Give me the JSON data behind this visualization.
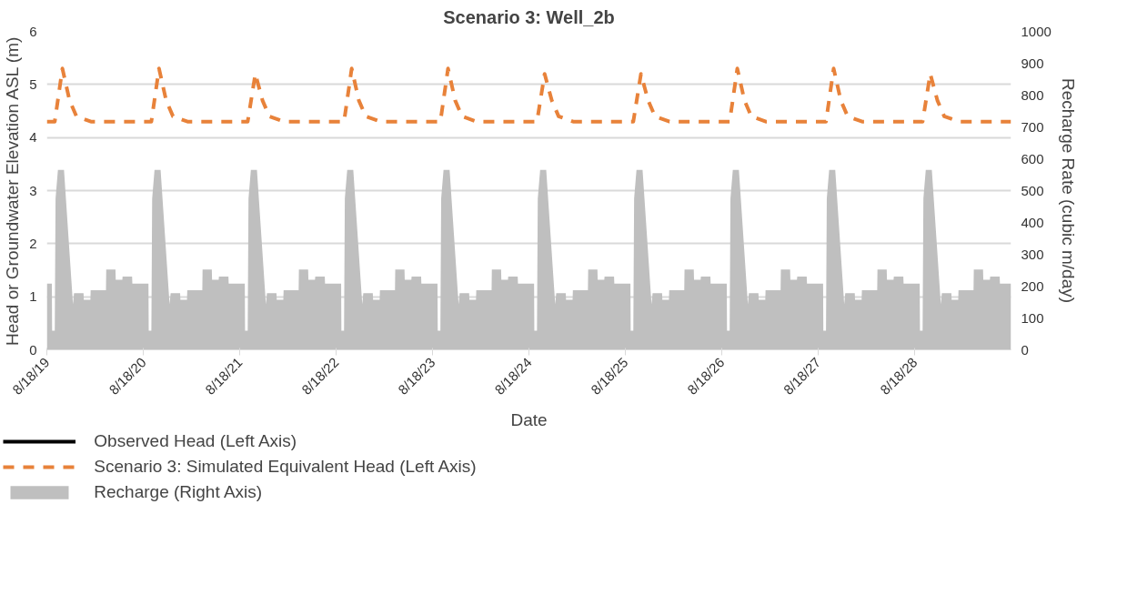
{
  "chart_data": {
    "type": "line",
    "title": "Scenario 3: Well_2b",
    "xlabel": "Date",
    "ylabel": "Head or Groundwater Elevation ASL (m)",
    "y2label": "Recharge Rate (cubic m/day)",
    "xlim": [
      "2019-08-18",
      "2029-08-18"
    ],
    "xticks": [
      {
        "value": "2019-08-18",
        "label": "8/18/19"
      },
      {
        "value": "2020-08-18",
        "label": "8/18/20"
      },
      {
        "value": "2021-08-18",
        "label": "8/18/21"
      },
      {
        "value": "2022-08-18",
        "label": "8/18/22"
      },
      {
        "value": "2023-08-18",
        "label": "8/18/23"
      },
      {
        "value": "2024-08-18",
        "label": "8/18/24"
      },
      {
        "value": "2025-08-18",
        "label": "8/18/25"
      },
      {
        "value": "2026-08-18",
        "label": "8/18/26"
      },
      {
        "value": "2027-08-18",
        "label": "8/18/27"
      },
      {
        "value": "2028-08-18",
        "label": "8/18/28"
      }
    ],
    "ylim": [
      0,
      6
    ],
    "yticks": [
      0,
      1,
      2,
      3,
      4,
      5,
      6
    ],
    "y2lim": [
      0,
      1000
    ],
    "y2ticks": [
      0,
      100,
      200,
      300,
      400,
      500,
      600,
      700,
      800,
      900,
      1000
    ],
    "grid": "y",
    "legend": "bottom",
    "series": [
      {
        "name": "Observed Head (Left Axis)",
        "color": "#000000",
        "line_style": "solid"
      },
      {
        "name": "Scenario 3: Simulated Equivalent Head (Left Axis)",
        "color": "#e8823a",
        "line_style": "dashed",
        "x": [
          "2019-08-18",
          "2019-09-17",
          "2019-10-16",
          "2019-11-12",
          "2019-12-08",
          "2020-02-01",
          "2020-08-18",
          "2020-09-17",
          "2020-10-16",
          "2020-11-12",
          "2020-12-08",
          "2021-02-01",
          "2021-08-18",
          "2021-09-17",
          "2021-10-16",
          "2021-11-12",
          "2021-12-08",
          "2022-02-01",
          "2022-08-18",
          "2022-09-17",
          "2022-10-16",
          "2022-11-12",
          "2022-12-08",
          "2023-02-01",
          "2023-08-18",
          "2023-09-17",
          "2023-10-16",
          "2023-11-12",
          "2023-12-08",
          "2024-02-01",
          "2024-08-18",
          "2024-09-17",
          "2024-10-16",
          "2024-11-12",
          "2024-12-08",
          "2025-02-01",
          "2025-08-18",
          "2025-09-17",
          "2025-10-16",
          "2025-11-12",
          "2025-12-08",
          "2026-02-01",
          "2026-08-18",
          "2026-09-17",
          "2026-10-16",
          "2026-11-12",
          "2026-12-08",
          "2027-02-01",
          "2027-08-18",
          "2027-09-17",
          "2027-10-16",
          "2027-11-12",
          "2027-12-08",
          "2028-02-01",
          "2028-08-18",
          "2028-09-17",
          "2028-10-16",
          "2028-11-12",
          "2028-12-08",
          "2029-02-01",
          "2029-08-18"
        ],
        "values": [
          4.3,
          4.3,
          5.3,
          4.7,
          4.4,
          4.3,
          4.3,
          4.3,
          5.3,
          4.7,
          4.4,
          4.3,
          4.3,
          4.3,
          5.2,
          4.7,
          4.4,
          4.3,
          4.3,
          4.3,
          5.3,
          4.7,
          4.4,
          4.3,
          4.3,
          4.3,
          5.3,
          4.7,
          4.4,
          4.3,
          4.3,
          4.3,
          5.2,
          4.7,
          4.4,
          4.3,
          4.3,
          4.3,
          5.2,
          4.7,
          4.4,
          4.3,
          4.3,
          4.3,
          5.3,
          4.7,
          4.4,
          4.3,
          4.3,
          4.3,
          5.3,
          4.7,
          4.4,
          4.3,
          4.3,
          4.3,
          5.2,
          4.7,
          4.4,
          4.3,
          4.3
        ]
      },
      {
        "name": "Recharge (Right Axis)",
        "type": "area",
        "axis": "y2",
        "color": "#bfbfbf",
        "x": [
          "2019-08-18",
          "2019-09-06",
          "2019-09-07",
          "2019-09-17",
          "2019-09-20",
          "2019-09-29",
          "2019-10-22",
          "2019-11-25",
          "2019-11-29",
          "2020-01-04",
          "2020-01-05",
          "2020-01-30",
          "2020-01-31",
          "2020-03-29",
          "2020-03-30",
          "2020-05-04",
          "2020-05-05",
          "2020-05-30",
          "2020-05-31",
          "2020-07-06",
          "2020-07-07",
          "2020-08-18",
          "2020-09-06",
          "2020-09-07",
          "2020-09-17",
          "2020-09-20",
          "2020-09-29",
          "2020-10-22",
          "2020-11-25",
          "2020-11-29",
          "2021-01-04",
          "2021-01-05",
          "2021-01-30",
          "2021-01-31",
          "2021-03-29",
          "2021-03-30",
          "2021-05-04",
          "2021-05-05",
          "2021-05-30",
          "2021-05-31",
          "2021-07-06",
          "2021-07-07",
          "2021-08-18",
          "2021-09-06",
          "2021-09-07",
          "2021-09-17",
          "2021-09-20",
          "2021-09-29",
          "2021-10-22",
          "2021-11-25",
          "2021-11-29",
          "2022-01-04",
          "2022-01-05",
          "2022-01-30",
          "2022-01-31",
          "2022-03-29",
          "2022-03-30",
          "2022-05-04",
          "2022-05-05",
          "2022-05-30",
          "2022-05-31",
          "2022-07-06",
          "2022-07-07",
          "2022-08-18",
          "2022-09-06",
          "2022-09-07",
          "2022-09-17",
          "2022-09-20",
          "2022-09-29",
          "2022-10-22",
          "2022-11-25",
          "2022-11-29",
          "2023-01-04",
          "2023-01-05",
          "2023-01-30",
          "2023-01-31",
          "2023-03-29",
          "2023-03-30",
          "2023-05-04",
          "2023-05-05",
          "2023-05-30",
          "2023-05-31",
          "2023-07-06",
          "2023-07-07",
          "2023-08-18",
          "2023-09-06",
          "2023-09-07",
          "2023-09-17",
          "2023-09-20",
          "2023-09-29",
          "2023-10-22",
          "2023-11-25",
          "2023-11-29",
          "2024-01-04",
          "2024-01-05",
          "2024-01-30",
          "2024-01-31",
          "2024-03-29",
          "2024-03-30",
          "2024-05-04",
          "2024-05-05",
          "2024-05-30",
          "2024-05-31",
          "2024-07-06",
          "2024-07-07",
          "2024-08-18",
          "2024-09-06",
          "2024-09-07",
          "2024-09-17",
          "2024-09-20",
          "2024-09-29",
          "2024-10-22",
          "2024-11-25",
          "2024-11-29",
          "2025-01-04",
          "2025-01-05",
          "2025-01-30",
          "2025-01-31",
          "2025-03-29",
          "2025-03-30",
          "2025-05-04",
          "2025-05-05",
          "2025-05-30",
          "2025-05-31",
          "2025-07-06",
          "2025-07-07",
          "2025-08-18",
          "2025-09-06",
          "2025-09-07",
          "2025-09-17",
          "2025-09-20",
          "2025-09-29",
          "2025-10-22",
          "2025-11-25",
          "2025-11-29",
          "2026-01-04",
          "2026-01-05",
          "2026-01-30",
          "2026-01-31",
          "2026-03-29",
          "2026-03-30",
          "2026-05-04",
          "2026-05-05",
          "2026-05-30",
          "2026-05-31",
          "2026-07-06",
          "2026-07-07",
          "2026-08-18",
          "2026-09-06",
          "2026-09-07",
          "2026-09-17",
          "2026-09-20",
          "2026-09-29",
          "2026-10-22",
          "2026-11-25",
          "2026-11-29",
          "2027-01-04",
          "2027-01-05",
          "2027-01-30",
          "2027-01-31",
          "2027-03-29",
          "2027-03-30",
          "2027-05-04",
          "2027-05-05",
          "2027-05-30",
          "2027-05-31",
          "2027-07-06",
          "2027-07-07",
          "2027-08-18",
          "2027-09-06",
          "2027-09-07",
          "2027-09-17",
          "2027-09-20",
          "2027-09-29",
          "2027-10-22",
          "2027-11-25",
          "2027-11-29",
          "2028-01-04",
          "2028-01-05",
          "2028-01-30",
          "2028-01-31",
          "2028-03-29",
          "2028-03-30",
          "2028-05-04",
          "2028-05-05",
          "2028-05-30",
          "2028-05-31",
          "2028-07-06",
          "2028-07-07",
          "2028-08-18",
          "2028-09-06",
          "2028-09-07",
          "2028-09-17",
          "2028-09-20",
          "2028-09-29",
          "2028-10-22",
          "2028-11-25",
          "2028-11-29",
          "2029-01-04",
          "2029-01-05",
          "2029-01-30",
          "2029-01-31",
          "2029-03-29",
          "2029-03-30",
          "2029-05-04",
          "2029-05-05",
          "2029-05-30",
          "2029-05-31",
          "2029-07-06",
          "2029-07-07",
          "2029-08-18"
        ],
        "values": [
          208,
          208,
          60,
          60,
          475,
          565,
          565,
          143,
          178,
          178,
          157,
          157,
          187,
          187,
          252,
          252,
          220,
          220,
          230,
          230,
          208,
          208,
          208,
          60,
          60,
          475,
          565,
          565,
          143,
          178,
          178,
          157,
          157,
          187,
          187,
          252,
          252,
          220,
          220,
          230,
          230,
          208,
          208,
          208,
          60,
          60,
          475,
          565,
          565,
          143,
          178,
          178,
          157,
          157,
          187,
          187,
          252,
          252,
          220,
          220,
          230,
          230,
          208,
          208,
          208,
          60,
          60,
          475,
          565,
          565,
          143,
          178,
          178,
          157,
          157,
          187,
          187,
          252,
          252,
          220,
          220,
          230,
          230,
          208,
          208,
          208,
          60,
          60,
          475,
          565,
          565,
          143,
          178,
          178,
          157,
          157,
          187,
          187,
          252,
          252,
          220,
          220,
          230,
          230,
          208,
          208,
          208,
          60,
          60,
          475,
          565,
          565,
          143,
          178,
          178,
          157,
          157,
          187,
          187,
          252,
          252,
          220,
          220,
          230,
          230,
          208,
          208,
          208,
          60,
          60,
          475,
          565,
          565,
          143,
          178,
          178,
          157,
          157,
          187,
          187,
          252,
          252,
          220,
          220,
          230,
          230,
          208,
          208,
          208,
          60,
          60,
          475,
          565,
          565,
          143,
          178,
          178,
          157,
          157,
          187,
          187,
          252,
          252,
          220,
          220,
          230,
          230,
          208,
          208,
          208,
          60,
          60,
          475,
          565,
          565,
          143,
          178,
          178,
          157,
          157,
          187,
          187,
          252,
          252,
          220,
          220,
          230,
          230,
          208,
          208,
          208,
          60,
          60,
          475,
          565,
          565,
          143,
          178,
          178,
          157,
          157,
          187,
          187,
          252,
          252,
          220,
          220,
          230,
          230,
          208,
          208
        ]
      }
    ]
  }
}
